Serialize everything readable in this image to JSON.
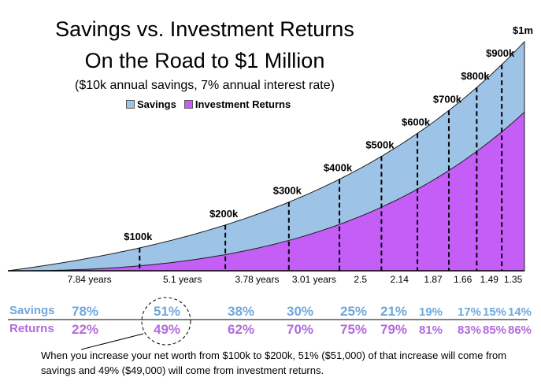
{
  "chart_data": {
    "type": "area",
    "title": "Savings vs. Investment Returns",
    "subtitle": "On the Road to $1 Million",
    "note": "($10k annual savings, 7% annual interest rate)",
    "series": [
      {
        "name": "Savings",
        "color": "#9dc3e6"
      },
      {
        "name": "Investment Returns",
        "color": "#c55ef7"
      }
    ],
    "milestones": [
      "$100k",
      "$200k",
      "$300k",
      "$400k",
      "$500k",
      "$600k",
      "$700k",
      "$800k",
      "$900k",
      "$1m"
    ],
    "milestone_values": [
      100000,
      200000,
      300000,
      400000,
      500000,
      600000,
      700000,
      800000,
      900000,
      1000000
    ],
    "intervals": [
      "7.84 years",
      "5.1 years",
      "3.78 years",
      "3.01 years",
      "2.5",
      "2.14",
      "1.87",
      "1.66",
      "1.49",
      "1.35"
    ],
    "interval_years": [
      7.84,
      5.1,
      3.78,
      3.01,
      2.5,
      2.14,
      1.87,
      1.66,
      1.49,
      1.35
    ],
    "savings_label": "Savings",
    "returns_label": "Returns",
    "savings_pct": [
      "78%",
      "51%",
      "38%",
      "30%",
      "25%",
      "21%",
      "19%",
      "17%",
      "15%",
      "14%"
    ],
    "returns_pct": [
      "22%",
      "49%",
      "62%",
      "70%",
      "75%",
      "79%",
      "81%",
      "83%",
      "85%",
      "86%"
    ],
    "savings_color": "#6fa8dc",
    "returns_color": "#b36bdc"
  },
  "footnote": "When you increase your net worth from $100k to $200k, 51% ($51,000) of that increase will come from savings and 49% ($49,000) will come from investment returns."
}
